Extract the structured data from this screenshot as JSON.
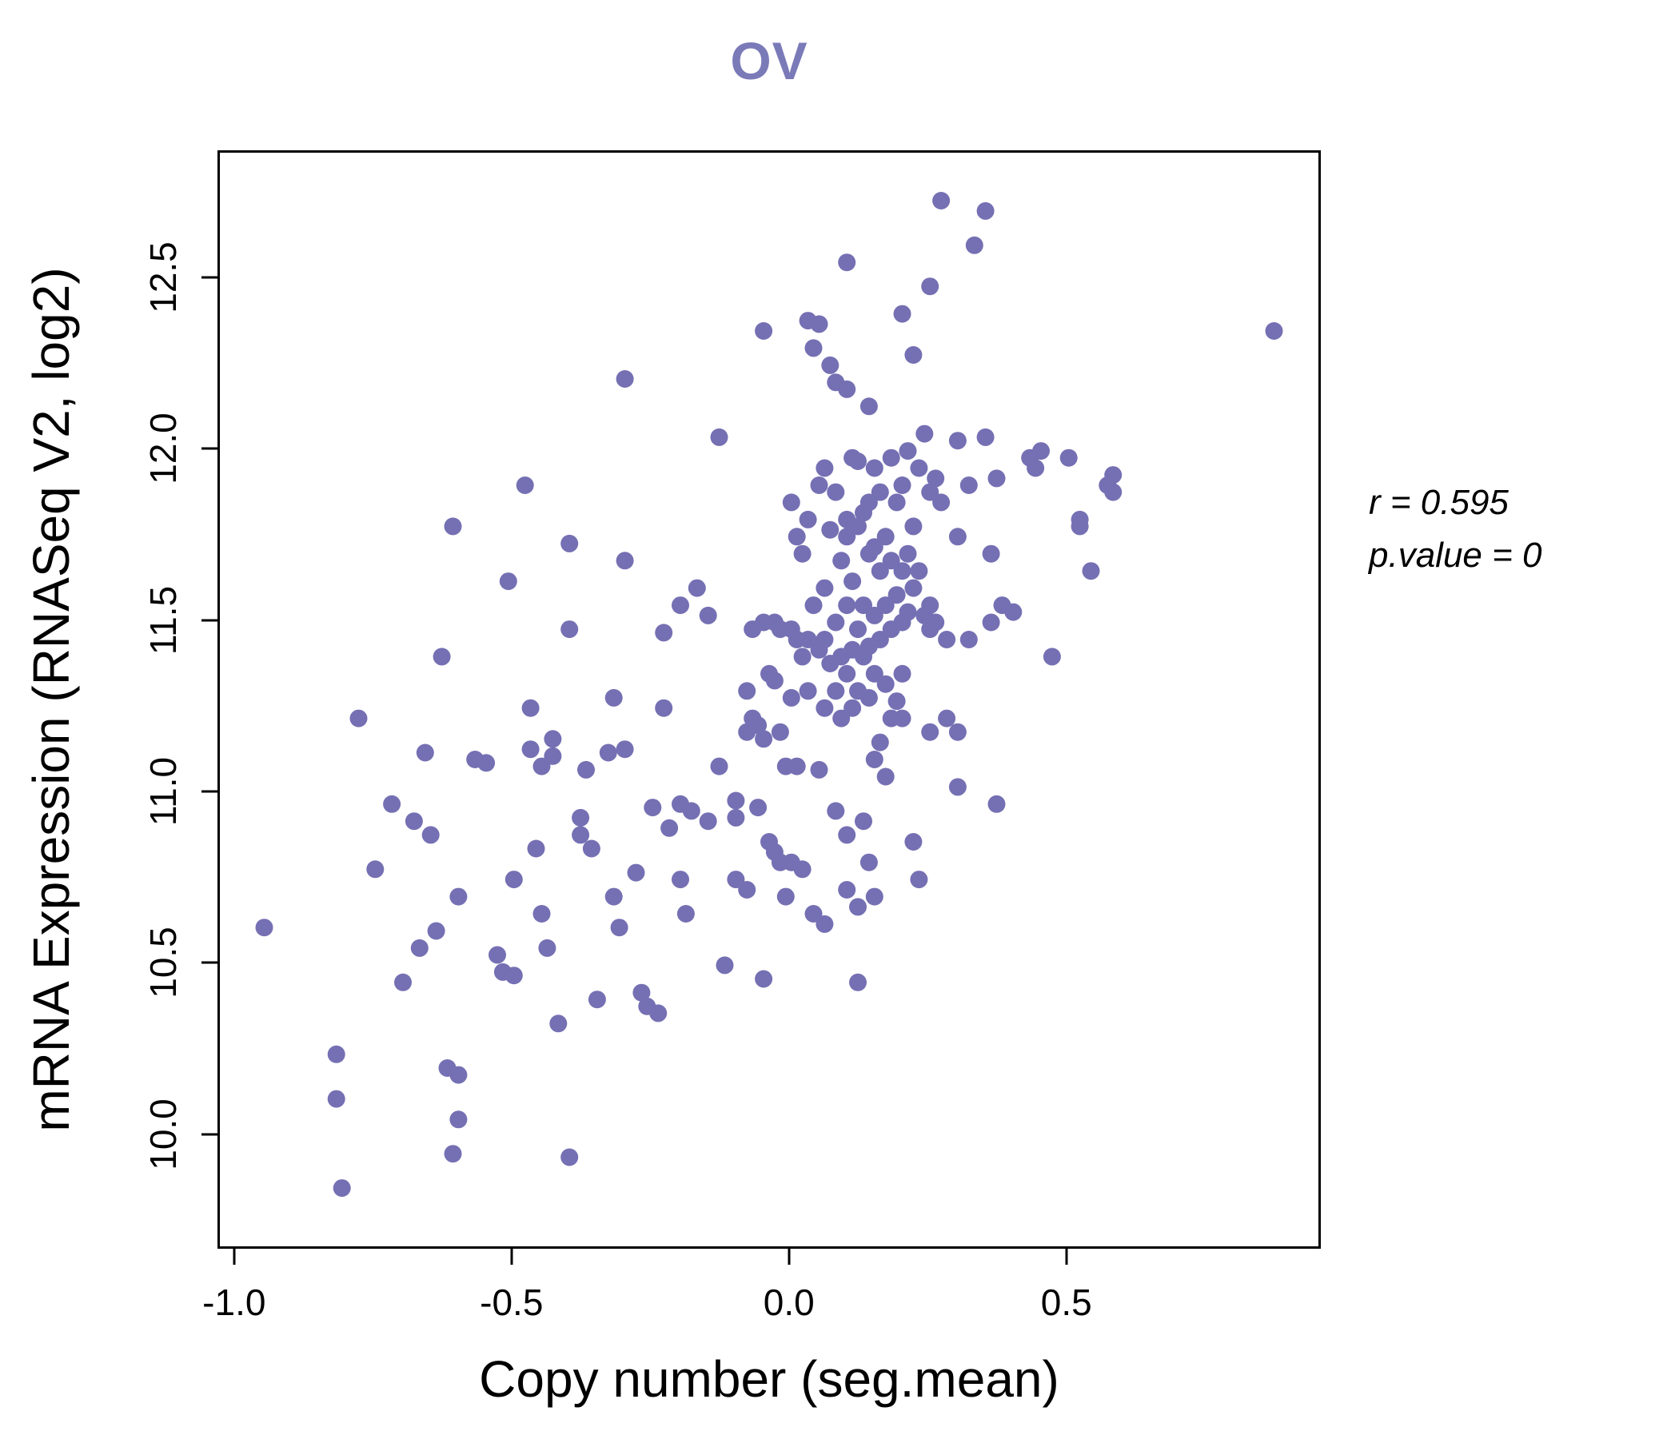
{
  "title": "OV",
  "title_color": "#7b7ab8",
  "annotation": {
    "line1": "r = 0.595",
    "line2": "p.value = 0"
  },
  "chart_data": {
    "type": "scatter",
    "title": "OV",
    "xlabel": "Copy number (seg.mean)",
    "ylabel": "mRNA Expression (RNASeq V2, log2)",
    "xlim": [
      -1.03,
      0.95
    ],
    "ylim": [
      9.68,
      12.87
    ],
    "x_ticks": [
      -1.0,
      -0.5,
      0.0,
      0.5
    ],
    "x_tick_labels": [
      "-1.0",
      "-0.5",
      "0.0",
      "0.5"
    ],
    "y_ticks": [
      10.0,
      10.5,
      11.0,
      11.5,
      12.0,
      12.5
    ],
    "y_tick_labels": [
      "10.0",
      "10.5",
      "11.0",
      "11.5",
      "12.0",
      "12.5"
    ],
    "grid": false,
    "legend": "none",
    "point_color": "#7570b3",
    "r": 0.595,
    "p_value": 0,
    "points": [
      [
        -0.95,
        10.61
      ],
      [
        -0.82,
        10.24
      ],
      [
        -0.82,
        10.11
      ],
      [
        -0.81,
        9.85
      ],
      [
        -0.78,
        11.22
      ],
      [
        -0.75,
        10.78
      ],
      [
        -0.72,
        10.97
      ],
      [
        -0.7,
        10.45
      ],
      [
        -0.68,
        10.92
      ],
      [
        -0.67,
        10.55
      ],
      [
        -0.66,
        11.12
      ],
      [
        -0.65,
        10.88
      ],
      [
        -0.64,
        10.6
      ],
      [
        -0.63,
        11.4
      ],
      [
        -0.62,
        10.2
      ],
      [
        -0.61,
        11.78
      ],
      [
        -0.6,
        10.7
      ],
      [
        -0.6,
        10.05
      ],
      [
        -0.61,
        9.95
      ],
      [
        -0.6,
        10.18
      ],
      [
        -0.57,
        11.1
      ],
      [
        -0.55,
        11.09
      ],
      [
        -0.53,
        10.53
      ],
      [
        -0.52,
        10.48
      ],
      [
        -0.51,
        11.62
      ],
      [
        -0.5,
        10.75
      ],
      [
        -0.5,
        10.47
      ],
      [
        -0.48,
        11.9
      ],
      [
        -0.47,
        11.25
      ],
      [
        -0.47,
        11.13
      ],
      [
        -0.46,
        10.84
      ],
      [
        -0.45,
        11.08
      ],
      [
        -0.45,
        10.65
      ],
      [
        -0.44,
        10.55
      ],
      [
        -0.43,
        11.16
      ],
      [
        -0.43,
        11.11
      ],
      [
        -0.42,
        10.33
      ],
      [
        -0.4,
        11.73
      ],
      [
        -0.4,
        11.48
      ],
      [
        -0.4,
        9.94
      ],
      [
        -0.38,
        10.93
      ],
      [
        -0.38,
        10.88
      ],
      [
        -0.37,
        11.07
      ],
      [
        -0.36,
        10.84
      ],
      [
        -0.35,
        10.4
      ],
      [
        -0.33,
        11.12
      ],
      [
        -0.32,
        11.28
      ],
      [
        -0.32,
        10.7
      ],
      [
        -0.31,
        10.61
      ],
      [
        -0.3,
        12.21
      ],
      [
        -0.3,
        11.68
      ],
      [
        -0.3,
        11.13
      ],
      [
        -0.28,
        10.77
      ],
      [
        -0.27,
        10.42
      ],
      [
        -0.25,
        10.96
      ],
      [
        -0.26,
        10.38
      ],
      [
        -0.24,
        10.36
      ],
      [
        -0.23,
        11.47
      ],
      [
        -0.23,
        11.25
      ],
      [
        -0.22,
        10.9
      ],
      [
        -0.2,
        11.55
      ],
      [
        -0.2,
        10.97
      ],
      [
        -0.2,
        10.75
      ],
      [
        -0.19,
        10.65
      ],
      [
        -0.18,
        10.95
      ],
      [
        -0.17,
        11.6
      ],
      [
        -0.15,
        11.52
      ],
      [
        -0.15,
        10.92
      ],
      [
        -0.13,
        12.04
      ],
      [
        -0.13,
        11.08
      ],
      [
        -0.12,
        10.5
      ],
      [
        -0.1,
        10.98
      ],
      [
        -0.1,
        10.93
      ],
      [
        -0.1,
        10.75
      ],
      [
        -0.08,
        11.3
      ],
      [
        -0.08,
        11.18
      ],
      [
        -0.08,
        10.72
      ],
      [
        -0.07,
        11.48
      ],
      [
        -0.07,
        11.22
      ],
      [
        -0.06,
        11.2
      ],
      [
        -0.06,
        10.96
      ],
      [
        -0.05,
        12.35
      ],
      [
        -0.05,
        11.5
      ],
      [
        -0.05,
        11.16
      ],
      [
        -0.05,
        10.46
      ],
      [
        -0.04,
        11.35
      ],
      [
        -0.04,
        10.86
      ],
      [
        -0.03,
        10.83
      ],
      [
        -0.03,
        11.5
      ],
      [
        -0.03,
        11.33
      ],
      [
        -0.02,
        10.8
      ],
      [
        -0.02,
        11.48
      ],
      [
        -0.02,
        11.18
      ],
      [
        -0.01,
        10.7
      ],
      [
        -0.01,
        11.08
      ],
      [
        0.0,
        11.85
      ],
      [
        0.0,
        11.48
      ],
      [
        0.0,
        11.28
      ],
      [
        0.0,
        10.8
      ],
      [
        0.01,
        11.75
      ],
      [
        0.01,
        11.45
      ],
      [
        0.01,
        11.08
      ],
      [
        0.02,
        11.7
      ],
      [
        0.02,
        11.4
      ],
      [
        0.02,
        10.78
      ],
      [
        0.03,
        12.38
      ],
      [
        0.03,
        11.8
      ],
      [
        0.03,
        11.45
      ],
      [
        0.03,
        11.3
      ],
      [
        0.04,
        12.3
      ],
      [
        0.04,
        11.55
      ],
      [
        0.04,
        10.65
      ],
      [
        0.05,
        12.37
      ],
      [
        0.05,
        11.9
      ],
      [
        0.05,
        11.42
      ],
      [
        0.05,
        11.07
      ],
      [
        0.06,
        11.95
      ],
      [
        0.06,
        11.6
      ],
      [
        0.06,
        11.45
      ],
      [
        0.06,
        11.25
      ],
      [
        0.06,
        10.62
      ],
      [
        0.07,
        12.25
      ],
      [
        0.07,
        11.77
      ],
      [
        0.07,
        11.38
      ],
      [
        0.08,
        12.2
      ],
      [
        0.08,
        11.88
      ],
      [
        0.08,
        11.5
      ],
      [
        0.08,
        11.3
      ],
      [
        0.08,
        10.95
      ],
      [
        0.09,
        11.68
      ],
      [
        0.09,
        11.4
      ],
      [
        0.09,
        11.22
      ],
      [
        0.1,
        12.55
      ],
      [
        0.1,
        12.18
      ],
      [
        0.1,
        11.8
      ],
      [
        0.1,
        11.75
      ],
      [
        0.1,
        11.55
      ],
      [
        0.1,
        11.35
      ],
      [
        0.1,
        10.88
      ],
      [
        0.1,
        10.72
      ],
      [
        0.11,
        11.98
      ],
      [
        0.11,
        11.62
      ],
      [
        0.11,
        11.42
      ],
      [
        0.11,
        11.25
      ],
      [
        0.12,
        11.97
      ],
      [
        0.12,
        11.78
      ],
      [
        0.12,
        11.48
      ],
      [
        0.12,
        11.3
      ],
      [
        0.12,
        10.67
      ],
      [
        0.12,
        10.45
      ],
      [
        0.13,
        11.82
      ],
      [
        0.13,
        11.55
      ],
      [
        0.13,
        11.4
      ],
      [
        0.13,
        10.92
      ],
      [
        0.14,
        12.13
      ],
      [
        0.14,
        11.85
      ],
      [
        0.14,
        11.7
      ],
      [
        0.14,
        11.43
      ],
      [
        0.14,
        11.28
      ],
      [
        0.14,
        10.8
      ],
      [
        0.15,
        11.95
      ],
      [
        0.15,
        11.72
      ],
      [
        0.15,
        11.52
      ],
      [
        0.15,
        11.35
      ],
      [
        0.15,
        11.1
      ],
      [
        0.15,
        10.7
      ],
      [
        0.16,
        11.88
      ],
      [
        0.16,
        11.65
      ],
      [
        0.16,
        11.45
      ],
      [
        0.16,
        11.15
      ],
      [
        0.17,
        11.75
      ],
      [
        0.17,
        11.55
      ],
      [
        0.17,
        11.32
      ],
      [
        0.17,
        11.05
      ],
      [
        0.18,
        11.98
      ],
      [
        0.18,
        11.68
      ],
      [
        0.18,
        11.48
      ],
      [
        0.18,
        11.22
      ],
      [
        0.19,
        11.85
      ],
      [
        0.19,
        11.58
      ],
      [
        0.19,
        11.27
      ],
      [
        0.2,
        12.4
      ],
      [
        0.2,
        11.9
      ],
      [
        0.2,
        11.65
      ],
      [
        0.2,
        11.5
      ],
      [
        0.2,
        11.35
      ],
      [
        0.2,
        11.22
      ],
      [
        0.21,
        12.0
      ],
      [
        0.21,
        11.7
      ],
      [
        0.21,
        11.53
      ],
      [
        0.22,
        12.28
      ],
      [
        0.22,
        11.78
      ],
      [
        0.22,
        11.6
      ],
      [
        0.22,
        10.86
      ],
      [
        0.23,
        11.95
      ],
      [
        0.23,
        11.65
      ],
      [
        0.23,
        10.75
      ],
      [
        0.24,
        12.05
      ],
      [
        0.24,
        11.52
      ],
      [
        0.25,
        12.48
      ],
      [
        0.25,
        11.88
      ],
      [
        0.25,
        11.55
      ],
      [
        0.25,
        11.48
      ],
      [
        0.25,
        11.18
      ],
      [
        0.26,
        11.92
      ],
      [
        0.26,
        11.5
      ],
      [
        0.27,
        12.73
      ],
      [
        0.27,
        11.85
      ],
      [
        0.28,
        11.45
      ],
      [
        0.28,
        11.22
      ],
      [
        0.3,
        12.03
      ],
      [
        0.3,
        11.75
      ],
      [
        0.3,
        11.18
      ],
      [
        0.3,
        11.02
      ],
      [
        0.32,
        11.9
      ],
      [
        0.32,
        11.45
      ],
      [
        0.33,
        12.6
      ],
      [
        0.35,
        12.7
      ],
      [
        0.35,
        12.04
      ],
      [
        0.36,
        11.7
      ],
      [
        0.36,
        11.5
      ],
      [
        0.37,
        11.92
      ],
      [
        0.37,
        10.97
      ],
      [
        0.38,
        11.55
      ],
      [
        0.4,
        11.53
      ],
      [
        0.43,
        11.98
      ],
      [
        0.44,
        11.95
      ],
      [
        0.45,
        12.0
      ],
      [
        0.47,
        11.4
      ],
      [
        0.5,
        11.98
      ],
      [
        0.52,
        11.8
      ],
      [
        0.52,
        11.78
      ],
      [
        0.54,
        11.65
      ],
      [
        0.57,
        11.9
      ],
      [
        0.58,
        11.93
      ],
      [
        0.58,
        11.88
      ],
      [
        0.87,
        12.35
      ]
    ]
  }
}
